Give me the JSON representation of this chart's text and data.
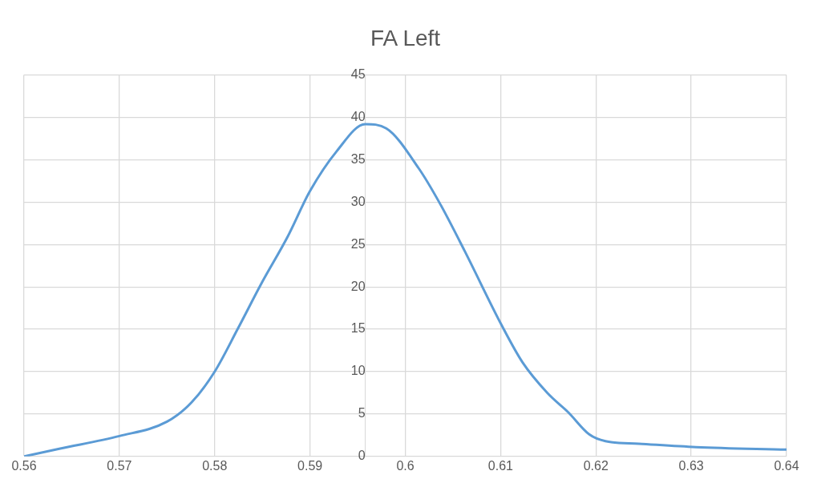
{
  "chart_data": {
    "type": "line",
    "title": "FA Left",
    "x": [
      0.56,
      0.5637,
      0.57,
      0.575,
      0.5776,
      0.58,
      0.5824,
      0.585,
      0.5876,
      0.59,
      0.5928,
      0.5958,
      0.598,
      0.6014,
      0.6036,
      0.6062,
      0.6101,
      0.6123,
      0.6149,
      0.6171,
      0.6193,
      0.621,
      0.6245,
      0.6305,
      0.64
    ],
    "series": [
      {
        "color": "#5b9bd5",
        "values": [
          0,
          0.9,
          2.4,
          4.1,
          6.4,
          10,
          15,
          20.6,
          25.8,
          31.3,
          36,
          39.2,
          38.7,
          34,
          29.9,
          24.3,
          15.5,
          11.1,
          7.5,
          5.2,
          2.6,
          1.8,
          1.5,
          1.1,
          0.8
        ]
      }
    ],
    "xlim": [
      0.56,
      0.64
    ],
    "xticks": [
      0.56,
      0.57,
      0.58,
      0.59,
      0.6,
      0.61,
      0.62,
      0.63,
      0.64
    ],
    "ylim": [
      0,
      45
    ],
    "yticks": [
      0,
      5,
      10,
      15,
      20,
      25,
      30,
      35,
      40,
      45
    ],
    "grid": true,
    "legend": false,
    "marker": "none",
    "line_style": "solid"
  }
}
